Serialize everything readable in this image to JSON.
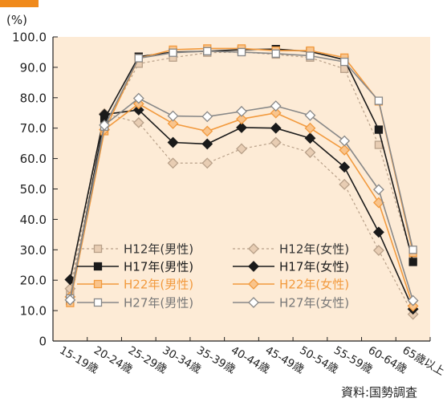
{
  "accent_color": "#f08a1c",
  "source": "資料:国勢調査",
  "chart_data": {
    "type": "line",
    "y_unit": "(%)",
    "xlabel": "",
    "ylabel": "",
    "ylim": [
      0,
      100
    ],
    "yticks": [
      "0",
      "10.0",
      "20.0",
      "30.0",
      "40.0",
      "50.0",
      "60.0",
      "70.0",
      "80.0",
      "90.0",
      "100.0"
    ],
    "categories": [
      "15-19歳",
      "20-24歳",
      "25-29歳",
      "30-34歳",
      "35-39歳",
      "40-44歳",
      "45-49歳",
      "50-54歳",
      "55-59歳",
      "60-64歳",
      "65歳以上"
    ],
    "grid": false,
    "legend_position": "bottom-left",
    "series": [
      {
        "name": "H12年(男性)",
        "color": "#b8a089",
        "marker": "square",
        "dashed": true,
        "label_color": "#333333",
        "values": [
          15.8,
          70.5,
          91.2,
          93.2,
          94.8,
          95.0,
          94.2,
          93.2,
          89.5,
          64.5,
          26.5
        ]
      },
      {
        "name": "H12年(女性)",
        "color": "#b8a089",
        "marker": "diamond",
        "dashed": true,
        "label_color": "#333333",
        "values": [
          17.2,
          74.8,
          71.8,
          58.5,
          58.5,
          63.2,
          65.3,
          62.0,
          51.5,
          29.8,
          8.8
        ]
      },
      {
        "name": "H17年(男性)",
        "color": "#1a1a1a",
        "marker": "square",
        "dashed": false,
        "label_color": "#1a1a1a",
        "values": [
          13.2,
          73.0,
          93.5,
          95.0,
          95.3,
          95.8,
          96.0,
          95.2,
          92.5,
          69.5,
          26.0
        ]
      },
      {
        "name": "H17年(女性)",
        "color": "#1a1a1a",
        "marker": "diamond",
        "dashed": false,
        "label_color": "#1a1a1a",
        "values": [
          20.2,
          74.5,
          76.0,
          65.3,
          64.8,
          70.2,
          70.0,
          66.7,
          57.2,
          35.8,
          10.5
        ]
      },
      {
        "name": "H22年(男性)",
        "color": "#f29a3e",
        "marker": "square",
        "dashed": false,
        "label_color": "#f29a3e",
        "values": [
          12.5,
          69.0,
          93.0,
          95.8,
          96.2,
          96.2,
          95.5,
          95.5,
          93.2,
          78.8,
          29.0
        ]
      },
      {
        "name": "H22年(女性)",
        "color": "#f29a3e",
        "marker": "diamond",
        "dashed": false,
        "label_color": "#f29a3e",
        "values": [
          14.5,
          69.5,
          78.0,
          71.5,
          69.0,
          73.0,
          75.0,
          70.0,
          62.8,
          45.5,
          11.5
        ]
      },
      {
        "name": "H27年(男性)",
        "color": "#888888",
        "marker": "square",
        "dashed": false,
        "label_color": "#777777",
        "values": [
          14.0,
          70.5,
          93.0,
          94.8,
          95.3,
          95.0,
          94.5,
          93.8,
          91.8,
          79.0,
          30.0
        ]
      },
      {
        "name": "H27年(女性)",
        "color": "#888888",
        "marker": "diamond",
        "dashed": false,
        "label_color": "#777777",
        "values": [
          13.5,
          71.0,
          79.8,
          74.0,
          73.8,
          75.5,
          77.3,
          74.2,
          65.8,
          49.8,
          13.3
        ]
      }
    ]
  }
}
